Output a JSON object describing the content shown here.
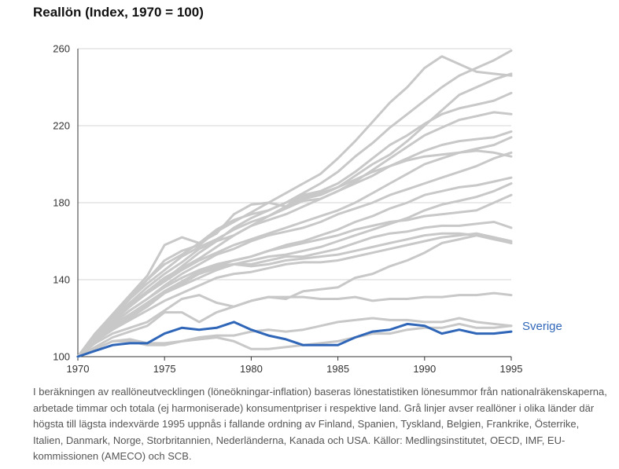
{
  "chart_data": {
    "type": "line",
    "title": "Reallön (Index, 1970 = 100)",
    "xlabel": "",
    "ylabel": "",
    "xlim": [
      1970,
      1995
    ],
    "ylim": [
      100,
      260
    ],
    "x_ticks": [
      1970,
      1975,
      1980,
      1985,
      1990,
      1995
    ],
    "y_ticks": [
      100,
      140,
      180,
      220,
      260
    ],
    "grid": "horizontal",
    "x": [
      1970,
      1971,
      1972,
      1973,
      1974,
      1975,
      1976,
      1977,
      1978,
      1979,
      1980,
      1981,
      1982,
      1983,
      1984,
      1985,
      1986,
      1987,
      1988,
      1989,
      1990,
      1991,
      1992,
      1993,
      1994,
      1995
    ],
    "colors": {
      "background_series": "#c8c8c8",
      "highlight": "#2f66b8"
    },
    "highlight_label": "Sverige",
    "series": [
      {
        "highlight": false,
        "values": [
          100,
          112,
          120,
          130,
          140,
          150,
          155,
          158,
          165,
          170,
          175,
          180,
          185,
          190,
          195,
          203,
          212,
          222,
          232,
          240,
          250,
          256,
          252,
          248,
          247,
          246
        ]
      },
      {
        "highlight": false,
        "values": [
          100,
          112,
          121,
          131,
          140,
          148,
          153,
          159,
          166,
          171,
          174,
          176,
          180,
          185,
          190,
          196,
          204,
          211,
          219,
          226,
          233,
          240,
          246,
          250,
          254,
          259
        ]
      },
      {
        "highlight": false,
        "values": [
          100,
          112,
          122,
          132,
          142,
          158,
          162,
          159,
          164,
          174,
          179,
          180,
          178,
          182,
          184,
          188,
          194,
          200,
          205,
          212,
          220,
          228,
          236,
          240,
          244,
          247
        ]
      },
      {
        "highlight": false,
        "values": [
          100,
          111,
          120,
          130,
          138,
          145,
          152,
          157,
          161,
          166,
          170,
          173,
          178,
          184,
          186,
          190,
          196,
          203,
          210,
          215,
          221,
          226,
          229,
          231,
          233,
          237
        ]
      },
      {
        "highlight": false,
        "values": [
          100,
          110,
          119,
          128,
          136,
          143,
          149,
          156,
          160,
          163,
          168,
          171,
          174,
          178,
          182,
          186,
          191,
          197,
          203,
          209,
          215,
          219,
          223,
          225,
          227,
          226
        ]
      },
      {
        "highlight": false,
        "values": [
          100,
          111,
          119,
          127,
          134,
          141,
          146,
          151,
          157,
          163,
          168,
          173,
          177,
          181,
          182,
          186,
          190,
          194,
          199,
          203,
          207,
          210,
          212,
          213,
          214,
          217
        ]
      },
      {
        "highlight": false,
        "values": [
          100,
          110,
          118,
          126,
          133,
          139,
          145,
          150,
          154,
          158,
          161,
          164,
          167,
          170,
          173,
          176,
          180,
          185,
          190,
          195,
          200,
          203,
          206,
          208,
          210,
          214
        ]
      },
      {
        "highlight": false,
        "values": [
          100,
          112,
          120,
          127,
          133,
          140,
          147,
          154,
          160,
          167,
          172,
          176,
          180,
          183,
          185,
          188,
          192,
          196,
          199,
          202,
          204,
          205,
          206,
          207,
          206,
          204
        ]
      },
      {
        "highlight": false,
        "values": [
          100,
          110,
          117,
          124,
          130,
          137,
          143,
          148,
          153,
          156,
          160,
          163,
          165,
          167,
          170,
          174,
          177,
          180,
          184,
          187,
          190,
          193,
          196,
          199,
          203,
          206
        ]
      },
      {
        "highlight": false,
        "values": [
          100,
          109,
          116,
          122,
          128,
          134,
          139,
          144,
          147,
          150,
          152,
          155,
          158,
          160,
          163,
          166,
          170,
          173,
          177,
          180,
          184,
          186,
          188,
          189,
          191,
          193
        ]
      },
      {
        "highlight": false,
        "values": [
          100,
          109,
          116,
          122,
          127,
          134,
          139,
          144,
          147,
          148,
          150,
          152,
          153,
          155,
          157,
          160,
          163,
          166,
          169,
          172,
          176,
          179,
          181,
          183,
          186,
          190
        ]
      },
      {
        "highlight": false,
        "values": [
          100,
          110,
          117,
          124,
          130,
          136,
          141,
          145,
          148,
          150,
          152,
          155,
          157,
          159,
          161,
          163,
          166,
          168,
          170,
          171,
          173,
          174,
          175,
          176,
          180,
          184
        ]
      },
      {
        "highlight": false,
        "values": [
          100,
          108,
          114,
          120,
          126,
          133,
          137,
          141,
          145,
          148,
          148,
          150,
          152,
          152,
          154,
          156,
          159,
          162,
          164,
          165,
          167,
          168,
          168,
          169,
          170,
          167
        ]
      },
      {
        "highlight": false,
        "values": [
          100,
          109,
          115,
          121,
          126,
          133,
          138,
          143,
          146,
          148,
          147,
          148,
          150,
          151,
          152,
          153,
          155,
          157,
          159,
          161,
          163,
          164,
          164,
          163,
          161,
          159
        ]
      },
      {
        "highlight": false,
        "values": [
          100,
          108,
          114,
          119,
          124,
          129,
          133,
          137,
          141,
          143,
          144,
          146,
          148,
          149,
          149,
          150,
          152,
          154,
          156,
          158,
          160,
          162,
          163,
          164,
          162,
          159
        ]
      },
      {
        "highlight": false,
        "values": [
          100,
          107,
          112,
          115,
          118,
          124,
          130,
          132,
          128,
          126,
          129,
          131,
          130,
          134,
          135,
          136,
          141,
          143,
          147,
          150,
          154,
          159,
          161,
          163,
          162,
          160
        ]
      },
      {
        "highlight": false,
        "values": [
          100,
          105,
          110,
          113,
          116,
          123,
          123,
          118,
          123,
          126,
          129,
          131,
          131,
          131,
          130,
          130,
          131,
          129,
          130,
          130,
          131,
          131,
          132,
          132,
          133,
          132
        ]
      },
      {
        "highlight": false,
        "values": [
          100,
          104,
          108,
          109,
          107,
          107,
          108,
          109,
          110,
          108,
          104,
          104,
          105,
          106,
          107,
          108,
          110,
          112,
          112,
          114,
          115,
          115,
          117,
          115,
          115,
          116
        ]
      },
      {
        "highlight": false,
        "values": [
          100,
          104,
          108,
          108,
          106,
          106,
          108,
          110,
          111,
          111,
          113,
          114,
          113,
          114,
          116,
          118,
          119,
          120,
          119,
          119,
          118,
          118,
          120,
          118,
          117,
          116
        ]
      },
      {
        "name": "Sverige",
        "highlight": true,
        "values": [
          100,
          103,
          106,
          107,
          107,
          112,
          115,
          114,
          115,
          118,
          114,
          111,
          109,
          106,
          106,
          106,
          110,
          113,
          114,
          117,
          116,
          112,
          114,
          112,
          112,
          113
        ]
      }
    ]
  },
  "caption": "I beräkningen av reallöneutvecklingen (löneökningar-inflation) baseras lönestatistiken lönesummor från nationalräkenskaperna, arbetade timmar och totala (ej harmoniserade) konsumentpriser i respektive land. Grå linjer avser reallöner i olika länder där högsta till lägsta indexvärde 1995 uppnås i fallande ordning av Finland, Spanien, Tyskland, Belgien, Frankrike, Österrike, Italien, Danmark, Norge, Storbritannien, Nederländerna, Kanada och USA. Källor: Medlingsinstitutet, OECD, IMF, EU-kommissionen (AMECO) och SCB."
}
